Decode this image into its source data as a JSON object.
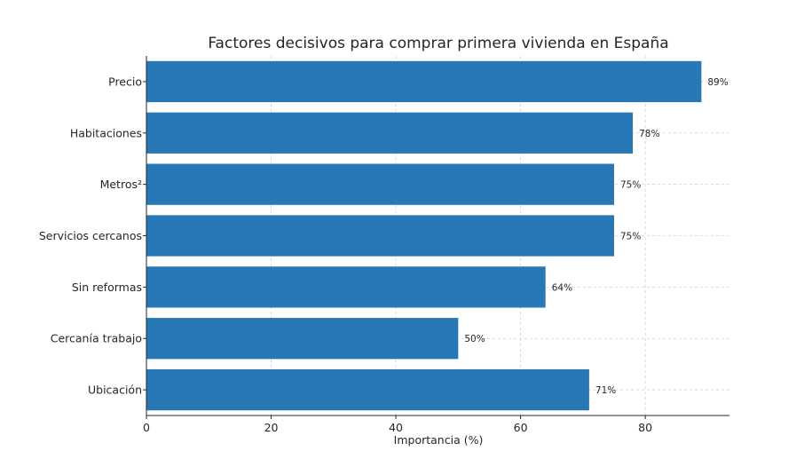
{
  "chart_data": {
    "type": "bar",
    "orientation": "horizontal",
    "title": "Factores decisivos para comprar primera vivienda en España",
    "xlabel": "Importancia (%)",
    "ylabel": "",
    "categories": [
      "Precio",
      "Habitaciones",
      "Metros²",
      "Servicios cercanos",
      "Sin reformas",
      "Cercanía trabajo",
      "Ubicación"
    ],
    "values": [
      89,
      78,
      75,
      75,
      64,
      50,
      71
    ],
    "value_labels": [
      "89%",
      "78%",
      "75%",
      "75%",
      "64%",
      "50%",
      "71%"
    ],
    "xlim": [
      0,
      93.5
    ],
    "xticks": [
      0,
      20,
      40,
      60,
      80
    ],
    "xtick_labels": [
      "0",
      "20",
      "40",
      "60",
      "80"
    ],
    "grid": true,
    "bar_color": "#2878b5"
  }
}
